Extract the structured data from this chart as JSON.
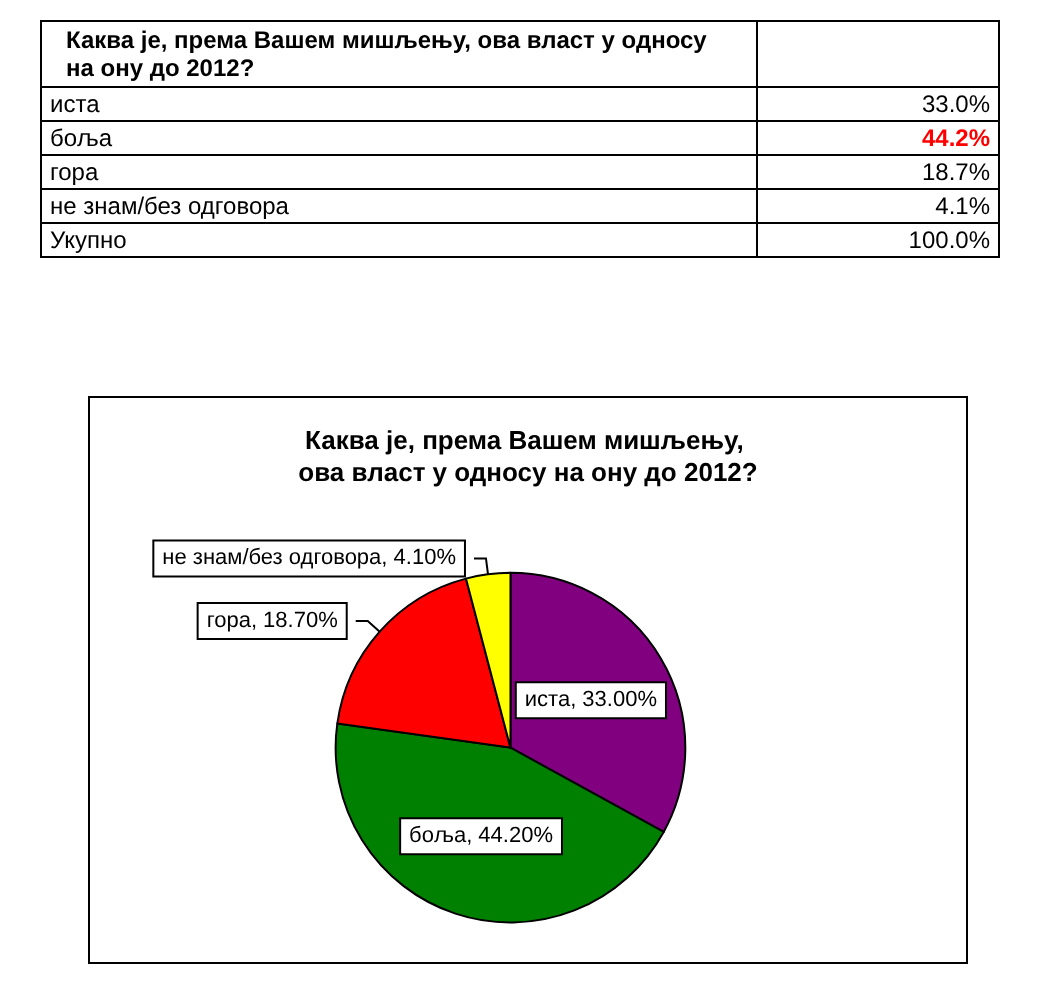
{
  "chart_data": [
    {
      "type": "other",
      "title": "Каква је, према Вашем мишљењу, ова власт у односу на ону до 2012?",
      "categories": [
        "иста",
        "боља",
        "гора",
        "не знам/без одговора",
        "Укупно"
      ],
      "value_labels": [
        "33.0%",
        "44.2%",
        "18.7%",
        "4.1%",
        "100.0%"
      ],
      "colors": [
        "#000000",
        "#ff0000",
        "#000000",
        "#000000",
        "#000000"
      ]
    },
    {
      "type": "pie",
      "title": "Каква је, према Вашем мишљењу, ова власт у односу на ону до 2012?",
      "categories": [
        "иста",
        "боља",
        "гора",
        "не знам/без одговора"
      ],
      "values": [
        33.0,
        44.2,
        18.7,
        4.1
      ],
      "colors": [
        "#800080",
        "#008000",
        "#ff0000",
        "#ffff00"
      ],
      "value_labels": [
        "33.00%",
        "44.20%",
        "18.70%",
        "4.10%"
      ],
      "legend": false
    }
  ]
}
